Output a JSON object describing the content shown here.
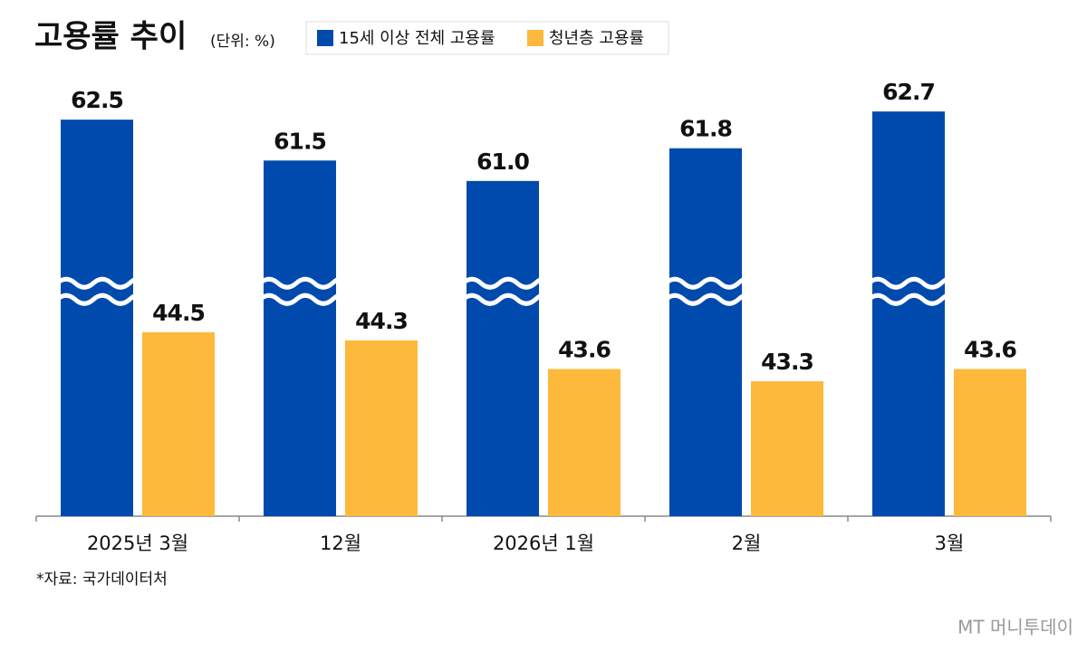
{
  "chart_data": {
    "type": "bar",
    "title": "고용률 추이",
    "subtitle": "(단위: %)",
    "categories": [
      "2025년 3월",
      "12월",
      "2026년 1월",
      "2월",
      "3월"
    ],
    "series": [
      {
        "name": "15세 이상 전체 고용률",
        "color": "#004aad",
        "values": [
          62.5,
          61.5,
          61.0,
          61.8,
          62.7
        ],
        "value_labels": [
          "62.5",
          "61.5",
          "61.0",
          "61.8",
          "62.7"
        ]
      },
      {
        "name": "청년층 고용률",
        "color": "#fdb93c",
        "values": [
          44.5,
          44.3,
          43.6,
          43.3,
          43.6
        ]
      }
    ],
    "ylim": [
      40,
      63.5
    ],
    "axis_break": [
      45.5,
      58.3
    ],
    "source": "*자료: 국가데이터처",
    "watermark": "MT 머니투데이"
  }
}
